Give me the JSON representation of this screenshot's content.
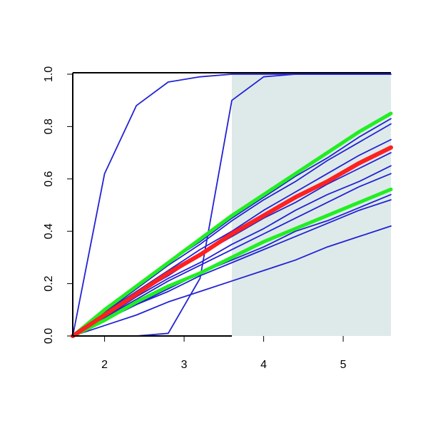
{
  "chart_data": {
    "type": "line",
    "x": [
      1.6,
      2.0,
      2.4,
      2.8,
      3.2,
      3.6,
      4.0,
      4.4,
      4.8,
      5.2,
      5.6
    ],
    "xlim": [
      1.6,
      5.6
    ],
    "ylim": [
      0,
      1
    ],
    "xticks": [
      2,
      3,
      4,
      5
    ],
    "yticks": [
      {
        "value": 0,
        "label": "0.0"
      },
      {
        "value": 0.2,
        "label": "0.2"
      },
      {
        "value": 0.4,
        "label": "0.4"
      },
      {
        "value": 0.6,
        "label": "0.6"
      },
      {
        "value": 0.8,
        "label": "0.8"
      },
      {
        "value": 1,
        "label": "1.0"
      }
    ],
    "shade": {
      "xlim": [
        3.6,
        5.6
      ],
      "color": "#deeaea"
    },
    "series": [
      {
        "color": "#2222d4",
        "width": 1.8,
        "values": [
          0,
          0.62,
          0.88,
          0.97,
          0.99,
          1,
          1,
          1,
          1,
          1,
          1
        ]
      },
      {
        "color": "#2222d4",
        "width": 1.8,
        "values": [
          0,
          0,
          0,
          0.01,
          0.22,
          0.9,
          0.99,
          1,
          1,
          1,
          1
        ]
      },
      {
        "color": "#2222d4",
        "width": 1.8,
        "values": [
          0,
          0.09,
          0.19,
          0.28,
          0.36,
          0.45,
          0.53,
          0.61,
          0.68,
          0.76,
          0.83
        ]
      },
      {
        "color": "#2222d4",
        "width": 1.8,
        "values": [
          0,
          0.09,
          0.18,
          0.27,
          0.35,
          0.44,
          0.52,
          0.59,
          0.67,
          0.74,
          0.81
        ]
      },
      {
        "color": "#2222d4",
        "width": 1.8,
        "values": [
          0,
          0.09,
          0.17,
          0.25,
          0.33,
          0.4,
          0.48,
          0.55,
          0.62,
          0.69,
          0.75
        ]
      },
      {
        "color": "#2222d4",
        "width": 1.8,
        "values": [
          0,
          0.08,
          0.16,
          0.23,
          0.31,
          0.38,
          0.45,
          0.51,
          0.58,
          0.64,
          0.7
        ]
      },
      {
        "color": "#2222d4",
        "width": 1.8,
        "values": [
          0,
          0.07,
          0.15,
          0.22,
          0.28,
          0.35,
          0.41,
          0.48,
          0.54,
          0.59,
          0.65
        ]
      },
      {
        "color": "#2222d4",
        "width": 1.8,
        "values": [
          0,
          0.07,
          0.14,
          0.21,
          0.27,
          0.33,
          0.39,
          0.45,
          0.51,
          0.57,
          0.62
        ]
      },
      {
        "color": "#2222d4",
        "width": 1.8,
        "values": [
          0,
          0.06,
          0.12,
          0.18,
          0.24,
          0.29,
          0.34,
          0.4,
          0.44,
          0.49,
          0.54
        ]
      },
      {
        "color": "#2222d4",
        "width": 1.8,
        "values": [
          0,
          0.06,
          0.12,
          0.17,
          0.23,
          0.28,
          0.33,
          0.38,
          0.43,
          0.48,
          0.52
        ]
      },
      {
        "color": "#2222d4",
        "width": 1.8,
        "values": [
          0,
          0.04,
          0.08,
          0.13,
          0.17,
          0.21,
          0.25,
          0.29,
          0.34,
          0.38,
          0.42
        ]
      },
      {
        "color": "#22ee22",
        "width": 5,
        "values": [
          0,
          0.1,
          0.19,
          0.28,
          0.37,
          0.46,
          0.54,
          0.62,
          0.7,
          0.78,
          0.85
        ]
      },
      {
        "color": "#22ee22",
        "width": 5,
        "values": [
          0,
          0.06,
          0.13,
          0.19,
          0.24,
          0.3,
          0.36,
          0.41,
          0.46,
          0.51,
          0.56
        ]
      },
      {
        "color": "#ff2020",
        "width": 6,
        "values": [
          0,
          0.08,
          0.16,
          0.24,
          0.31,
          0.39,
          0.46,
          0.53,
          0.59,
          0.66,
          0.72
        ]
      }
    ]
  }
}
